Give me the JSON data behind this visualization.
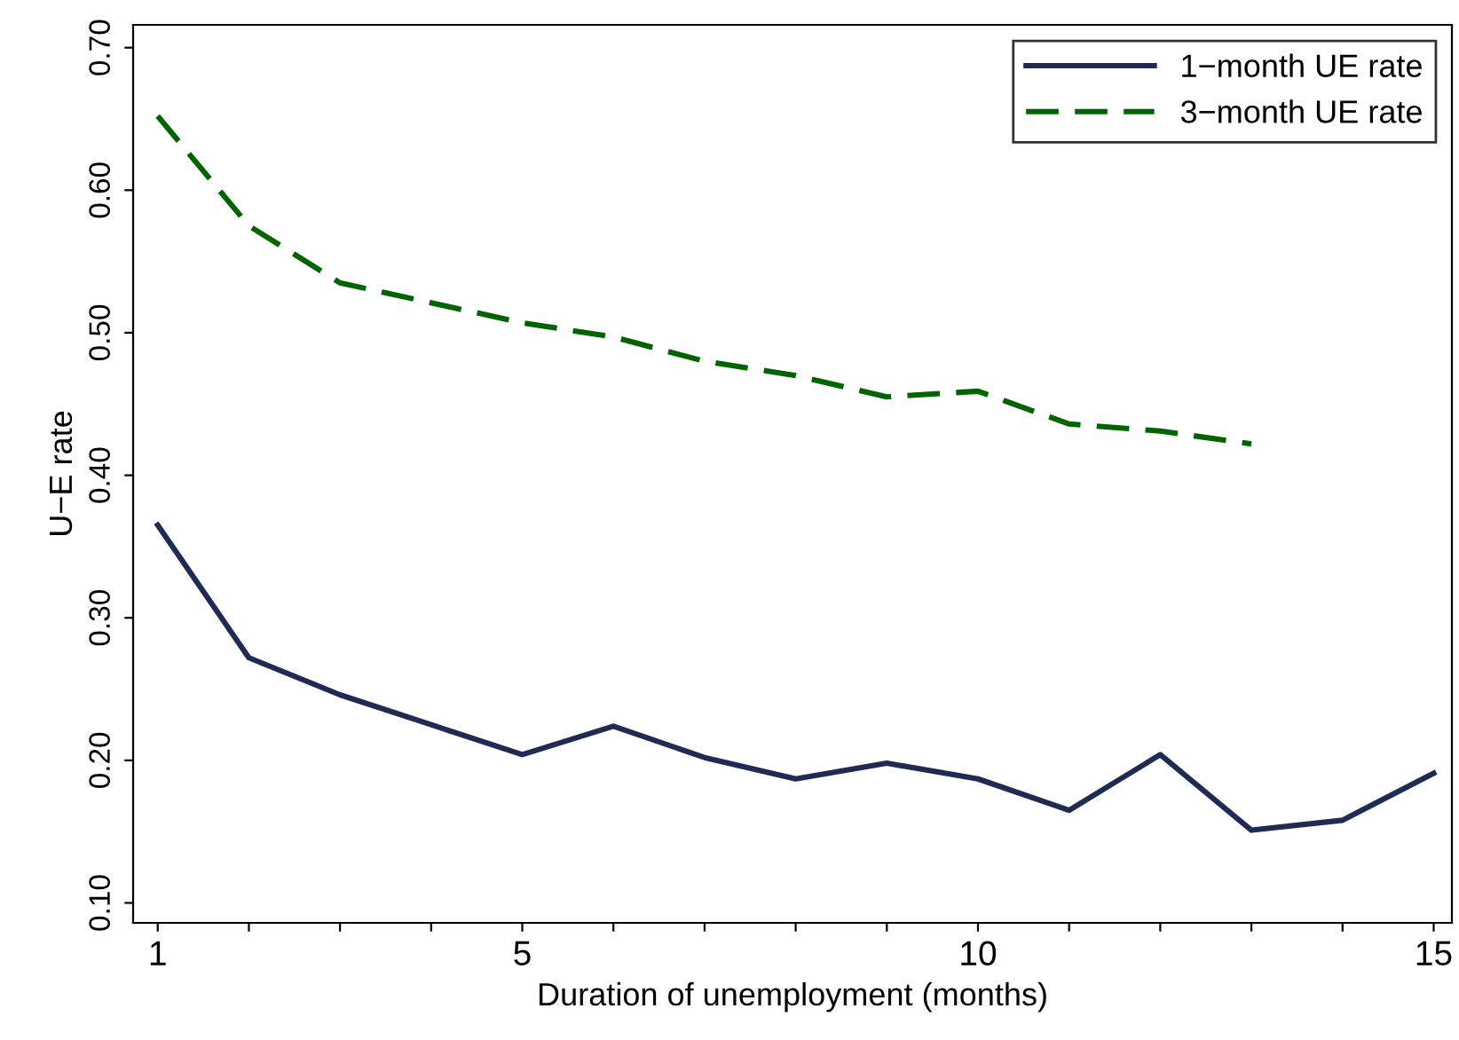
{
  "chart_data": {
    "type": "line",
    "xlabel": "Duration of unemployment (months)",
    "ylabel": "U−E rate",
    "xlim": [
      0.73,
      15.2
    ],
    "ylim": [
      0.086,
      0.716
    ],
    "xticks": [
      1,
      {
        "value": 2,
        "label": null
      },
      {
        "value": 3,
        "label": null
      },
      {
        "value": 4,
        "label": null
      },
      5,
      {
        "value": 6,
        "label": null
      },
      {
        "value": 7,
        "label": null
      },
      {
        "value": 8,
        "label": null
      },
      {
        "value": 9,
        "label": null
      },
      10,
      {
        "value": 11,
        "label": null
      },
      {
        "value": 12,
        "label": null
      },
      {
        "value": 13,
        "label": null
      },
      {
        "value": 14,
        "label": null
      },
      15
    ],
    "yticks": [
      {
        "value": 0.1,
        "label": "0.10"
      },
      {
        "value": 0.2,
        "label": "0.20"
      },
      {
        "value": 0.3,
        "label": "0.30"
      },
      {
        "value": 0.4,
        "label": "0.40"
      },
      {
        "value": 0.5,
        "label": "0.50"
      },
      {
        "value": 0.6,
        "label": "0.60"
      },
      {
        "value": 0.7,
        "label": "0.70"
      }
    ],
    "grid": false,
    "legend": "top right",
    "series": [
      {
        "name": "1−month UE rate",
        "color": "#1f2a55",
        "line_style": "solid",
        "x": [
          1,
          2,
          3,
          4,
          5,
          6,
          7,
          8,
          9,
          10,
          11,
          12,
          13,
          14,
          15
        ],
        "values": [
          0.365,
          0.272,
          0.246,
          0.225,
          0.204,
          0.224,
          0.202,
          0.187,
          0.198,
          0.187,
          0.165,
          0.204,
          0.151,
          0.158,
          0.191
        ]
      },
      {
        "name": "3−month UE rate",
        "color": "#006400",
        "line_style": "dashed",
        "x": [
          1,
          2,
          3,
          4,
          5,
          6,
          7,
          8,
          9,
          10,
          11,
          12,
          13
        ],
        "values": [
          0.652,
          0.575,
          0.535,
          0.521,
          0.507,
          0.497,
          0.48,
          0.47,
          0.455,
          0.459,
          0.436,
          0.431,
          0.422
        ]
      }
    ]
  }
}
